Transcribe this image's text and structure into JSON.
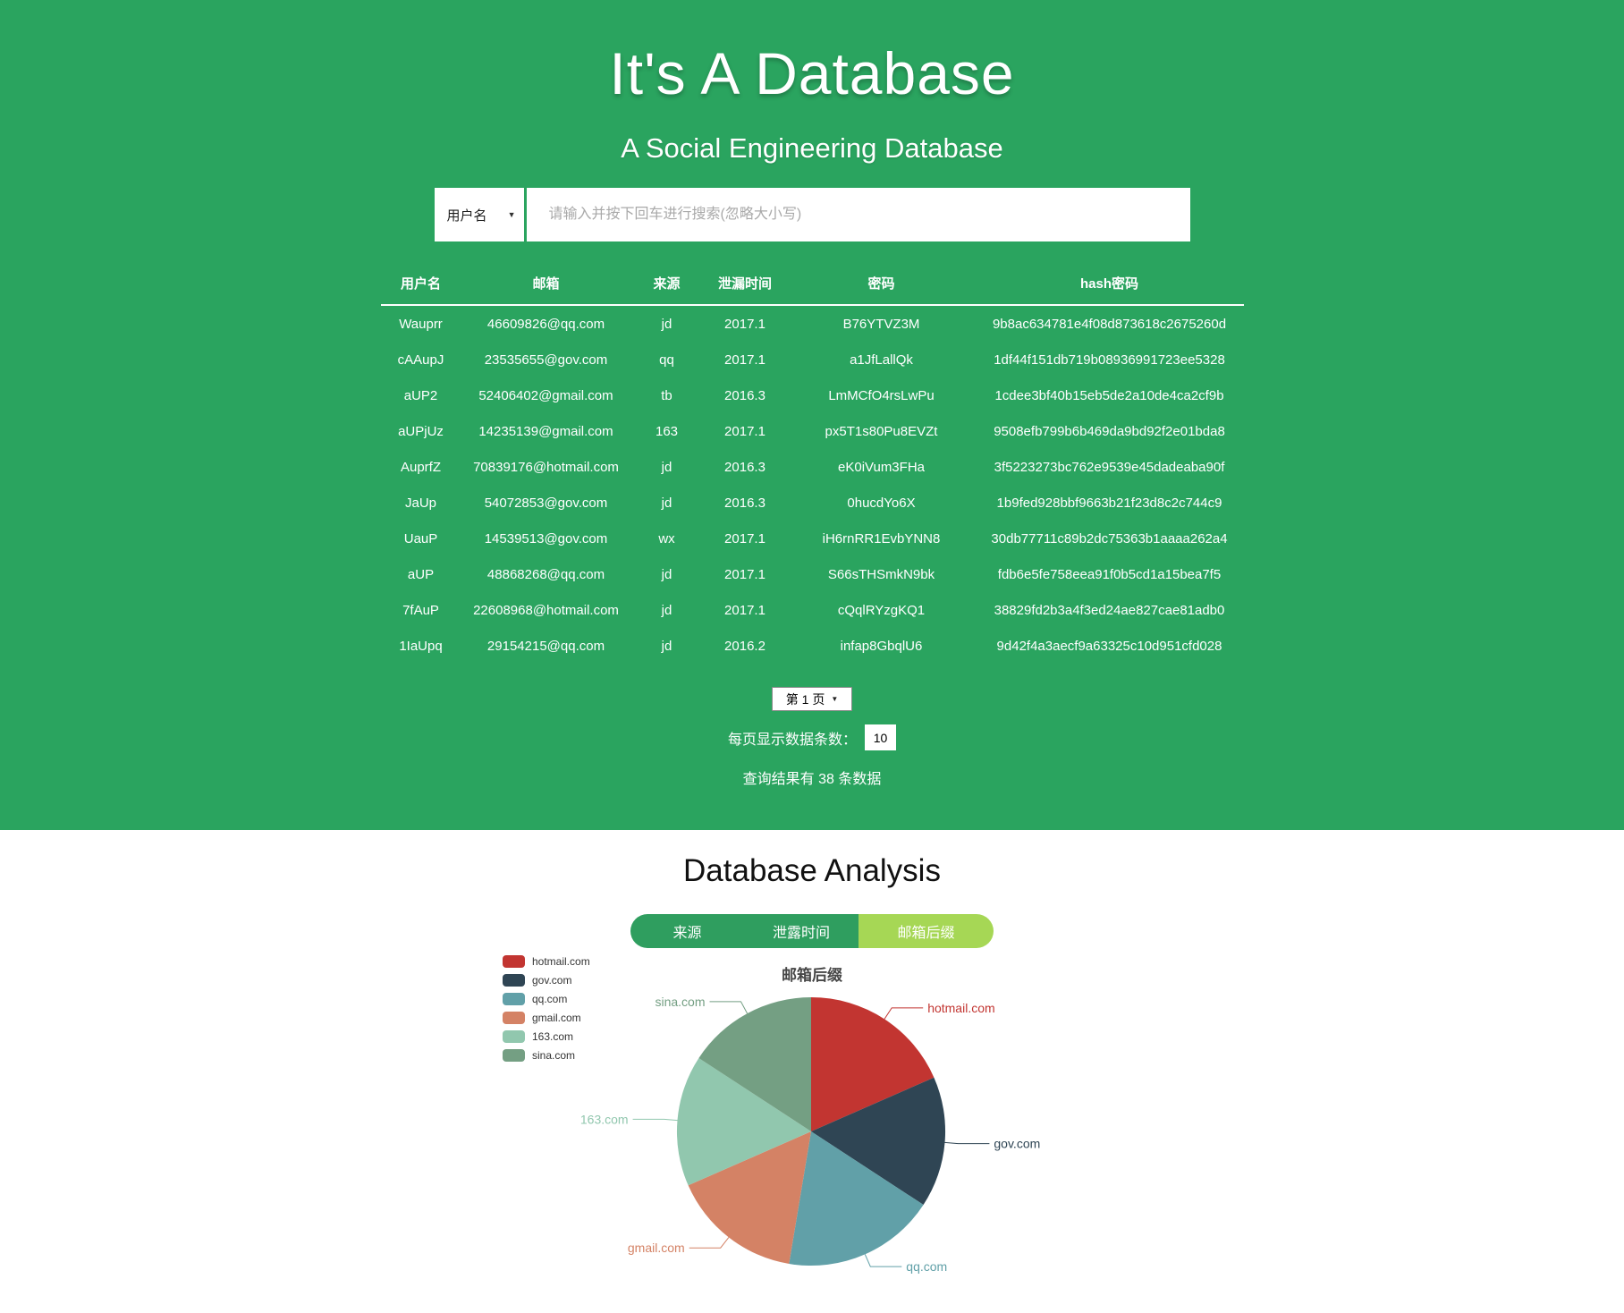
{
  "hero": {
    "title": "It's A Database",
    "subtitle": "A Social Engineering Database",
    "search": {
      "field_selector": "用户名",
      "placeholder": "请输入并按下回车进行搜索(忽略大小写)"
    },
    "table": {
      "headers": [
        "用户名",
        "邮箱",
        "来源",
        "泄漏时间",
        "密码",
        "hash密码"
      ],
      "rows": [
        [
          "Wauprr",
          "46609826@qq.com",
          "jd",
          "2017.1",
          "B76YTVZ3M",
          "9b8ac634781e4f08d873618c2675260d"
        ],
        [
          "cAAupJ",
          "23535655@gov.com",
          "qq",
          "2017.1",
          "a1JfLallQk",
          "1df44f151db719b08936991723ee5328"
        ],
        [
          "aUP2",
          "52406402@gmail.com",
          "tb",
          "2016.3",
          "LmMCfO4rsLwPu",
          "1cdee3bf40b15eb5de2a10de4ca2cf9b"
        ],
        [
          "aUPjUz",
          "14235139@gmail.com",
          "163",
          "2017.1",
          "px5T1s80Pu8EVZt",
          "9508efb799b6b469da9bd92f2e01bda8"
        ],
        [
          "AuprfZ",
          "70839176@hotmail.com",
          "jd",
          "2016.3",
          "eK0iVum3FHa",
          "3f5223273bc762e9539e45dadeaba90f"
        ],
        [
          "JaUp",
          "54072853@gov.com",
          "jd",
          "2016.3",
          "0hucdYo6X",
          "1b9fed928bbf9663b21f23d8c2c744c9"
        ],
        [
          "UauP",
          "14539513@gov.com",
          "wx",
          "2017.1",
          "iH6rnRR1EvbYNN8",
          "30db77711c89b2dc75363b1aaaa262a4"
        ],
        [
          "aUP",
          "48868268@qq.com",
          "jd",
          "2017.1",
          "S66sTHSmkN9bk",
          "fdb6e5fe758eea91f0b5cd1a15bea7f5"
        ],
        [
          "7fAuP",
          "22608968@hotmail.com",
          "jd",
          "2017.1",
          "cQqlRYzgKQ1",
          "38829fd2b3a4f3ed24ae827cae81adb0"
        ],
        [
          "1IaUpq",
          "29154215@qq.com",
          "jd",
          "2016.2",
          "infap8GbqlU6",
          "9d42f4a3aecf9a63325c10d951cfd028"
        ]
      ]
    },
    "pagination": {
      "page_selector": "第 1 页",
      "per_page_label": "每页显示数据条数：",
      "per_page_value": "10",
      "result_summary": "查询结果有 38 条数据"
    }
  },
  "analysis": {
    "title": "Database Analysis",
    "tabs": [
      {
        "label": "来源",
        "active": false
      },
      {
        "label": "泄露时间",
        "active": false
      },
      {
        "label": "邮箱后缀",
        "active": true
      }
    ]
  },
  "chart_data": {
    "type": "pie",
    "title": "邮箱后缀",
    "categories": [
      "hotmail.com",
      "gov.com",
      "qq.com",
      "gmail.com",
      "163.com",
      "sina.com"
    ],
    "values": [
      7,
      6,
      7,
      6,
      6,
      6
    ],
    "total_records": 38,
    "colors": [
      "#c23531",
      "#2f4554",
      "#61a0a8",
      "#d48265",
      "#91c7ae",
      "#749f83"
    ],
    "legend_position": "left",
    "start_angle": "top, clockwise"
  },
  "colors": {
    "hero_background": "#2aa45f",
    "tab_background": "#2f9e5f",
    "tab_active_background": "#a6d755"
  }
}
